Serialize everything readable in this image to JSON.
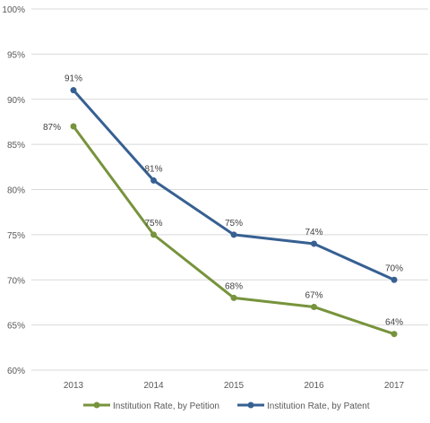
{
  "chart_data": {
    "type": "line",
    "title": "",
    "xlabel": "",
    "ylabel": "",
    "categories": [
      "2013",
      "2014",
      "2015",
      "2016",
      "2017"
    ],
    "ylim": [
      60,
      100
    ],
    "yticks": [
      "60%",
      "65%",
      "70%",
      "75%",
      "80%",
      "85%",
      "90%",
      "95%",
      "100%"
    ],
    "ytick_values": [
      60,
      65,
      70,
      75,
      80,
      85,
      90,
      95,
      100
    ],
    "grid": true,
    "legend_position": "bottom",
    "series": [
      {
        "name": "Institution Rate, by Petition",
        "color": "#77933C",
        "values": [
          87,
          75,
          68,
          67,
          64
        ],
        "labels": [
          "87%",
          "75%",
          "68%",
          "67%",
          "64%"
        ]
      },
      {
        "name": "Institution Rate, by Patent",
        "color": "#376092",
        "values": [
          91,
          81,
          75,
          74,
          70
        ],
        "labels": [
          "91%",
          "81%",
          "75%",
          "74%",
          "70%"
        ]
      }
    ]
  },
  "colors": {
    "gridline": "#D9D9D9",
    "axis_text": "#595959",
    "label_text": "#404040"
  }
}
